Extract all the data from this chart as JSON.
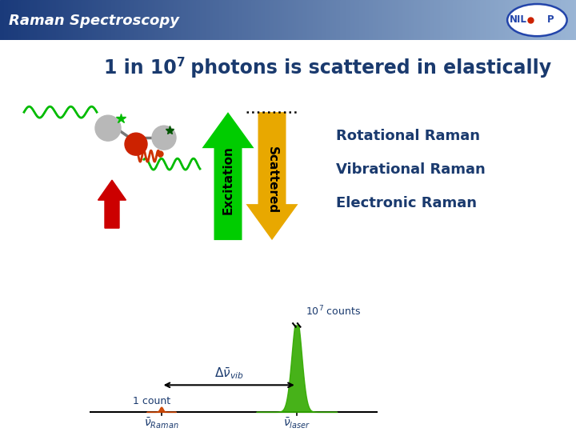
{
  "title": "Raman Spectroscopy",
  "header_grad_left": "#1a3a7a",
  "header_grad_right": "#9ab5d5",
  "raman_lines": [
    "Rotational Raman",
    "Vibrational Raman",
    "Electronic Raman"
  ],
  "excitation_color": "#00cc00",
  "scattered_color": "#e8a800",
  "excitation_label": "Excitation",
  "scattered_label": "Scattered",
  "text_color": "#1a3a6e",
  "red_arrow_color": "#cc0000",
  "peak_orange_color": "#cc4400",
  "peak_green_color": "#33aa00",
  "wave_green_color": "#00bb00",
  "wave_red_color": "#cc3300",
  "mol_gray": "#b8b8b8",
  "mol_red": "#cc2200",
  "logo_blue": "#2244aa",
  "logo_red": "#cc2200"
}
